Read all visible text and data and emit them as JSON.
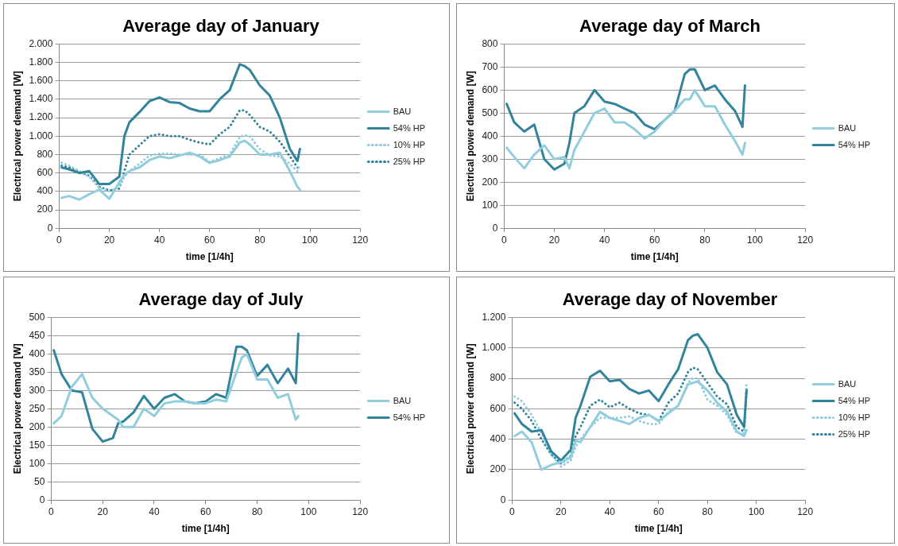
{
  "chart_data": [
    {
      "type": "line",
      "title": "Average day of January",
      "xlabel": "time [1/4h]",
      "ylabel": "Electrical power demand [W]",
      "legend": "right",
      "grid": "y",
      "marker": "none",
      "x": [
        1,
        4,
        8,
        12,
        16,
        20,
        24,
        26,
        28,
        32,
        36,
        40,
        44,
        48,
        52,
        56,
        60,
        64,
        68,
        72,
        74,
        76,
        80,
        84,
        88,
        92,
        95,
        96
      ],
      "xlim": [
        0,
        120
      ],
      "xticks": [
        0,
        20,
        40,
        60,
        80,
        100,
        120
      ],
      "ylim": [
        0,
        2000
      ],
      "yticks": [
        0,
        200,
        400,
        600,
        800,
        {
          "value": 1000,
          "label": "1.000"
        },
        {
          "value": 1200,
          "label": "1.200"
        },
        {
          "value": 1400,
          "label": "1.400"
        },
        {
          "value": 1600,
          "label": "1.600"
        },
        {
          "value": 1800,
          "label": "1.800"
        },
        {
          "value": 2000,
          "label": "2.000"
        }
      ],
      "series": [
        {
          "name": "BAU",
          "color": "#92cddd",
          "line_style": "solid",
          "values": [
            330,
            350,
            310,
            370,
            420,
            320,
            500,
            580,
            620,
            660,
            740,
            780,
            760,
            790,
            820,
            780,
            710,
            740,
            780,
            930,
            950,
            910,
            800,
            800,
            820,
            620,
            450,
            420
          ]
        },
        {
          "name": "54% HP",
          "color": "#31849b",
          "line_style": "solid",
          "values": [
            660,
            640,
            600,
            620,
            480,
            480,
            560,
            1000,
            1150,
            1260,
            1380,
            1420,
            1370,
            1360,
            1300,
            1270,
            1270,
            1400,
            1500,
            1780,
            1760,
            1720,
            1550,
            1440,
            1200,
            860,
            730,
            860
          ]
        },
        {
          "name": "10% HP",
          "color": "#92cddd",
          "line_style": "dotted",
          "values": [
            710,
            680,
            620,
            560,
            440,
            400,
            450,
            560,
            620,
            700,
            790,
            810,
            810,
            800,
            800,
            800,
            720,
            760,
            800,
            990,
            1010,
            1000,
            860,
            790,
            780,
            700,
            620,
            700
          ]
        },
        {
          "name": "25% HP",
          "color": "#31849b",
          "line_style": "dotted",
          "values": [
            680,
            660,
            610,
            570,
            450,
            410,
            430,
            620,
            800,
            900,
            1000,
            1020,
            1000,
            1000,
            960,
            930,
            910,
            1020,
            1100,
            1280,
            1280,
            1230,
            1100,
            1050,
            940,
            780,
            660,
            650
          ]
        }
      ]
    },
    {
      "type": "line",
      "title": "Average day of March",
      "xlabel": "time [1/4h]",
      "ylabel": "Electrical power demand [W]",
      "legend": "right",
      "grid": "y",
      "marker": "none",
      "x": [
        1,
        4,
        8,
        12,
        16,
        20,
        24,
        26,
        28,
        32,
        36,
        40,
        44,
        48,
        52,
        56,
        60,
        64,
        68,
        72,
        74,
        76,
        80,
        84,
        88,
        92,
        95,
        96
      ],
      "xlim": [
        0,
        120
      ],
      "xticks": [
        0,
        20,
        40,
        60,
        80,
        100,
        120
      ],
      "ylim": [
        0,
        800
      ],
      "yticks": [
        0,
        100,
        200,
        300,
        400,
        500,
        600,
        700,
        800
      ],
      "series": [
        {
          "name": "BAU",
          "color": "#92cddd",
          "line_style": "solid",
          "values": [
            350,
            310,
            260,
            320,
            360,
            300,
            310,
            260,
            340,
            420,
            500,
            520,
            460,
            460,
            430,
            390,
            420,
            470,
            510,
            560,
            560,
            600,
            530,
            530,
            450,
            380,
            320,
            370
          ]
        },
        {
          "name": "54% HP",
          "color": "#31849b",
          "line_style": "solid",
          "values": [
            540,
            460,
            420,
            450,
            300,
            255,
            280,
            370,
            500,
            530,
            600,
            550,
            540,
            520,
            500,
            450,
            430,
            470,
            510,
            670,
            690,
            690,
            600,
            620,
            560,
            510,
            440,
            620
          ]
        }
      ]
    },
    {
      "type": "line",
      "title": "Average day of July",
      "xlabel": "time [1/4h]",
      "ylabel": "Electrical power demand [W]",
      "legend": "right",
      "grid": "y",
      "marker": "none",
      "x": [
        1,
        4,
        8,
        12,
        16,
        20,
        24,
        26,
        28,
        32,
        36,
        40,
        44,
        48,
        52,
        56,
        60,
        64,
        68,
        72,
        74,
        76,
        80,
        84,
        88,
        92,
        95,
        96
      ],
      "xlim": [
        0,
        120
      ],
      "xticks": [
        0,
        20,
        40,
        60,
        80,
        100,
        120
      ],
      "ylim": [
        0,
        500
      ],
      "yticks": [
        0,
        50,
        100,
        150,
        200,
        250,
        300,
        350,
        400,
        450,
        500
      ],
      "series": [
        {
          "name": "BAU",
          "color": "#92cddd",
          "line_style": "solid",
          "values": [
            210,
            230,
            310,
            345,
            280,
            250,
            230,
            220,
            200,
            200,
            250,
            230,
            265,
            270,
            270,
            265,
            265,
            275,
            270,
            350,
            390,
            400,
            330,
            330,
            280,
            290,
            220,
            230
          ]
        },
        {
          "name": "54% HP",
          "color": "#31849b",
          "line_style": "solid",
          "values": [
            410,
            345,
            300,
            295,
            195,
            160,
            170,
            210,
            215,
            240,
            285,
            250,
            280,
            290,
            270,
            265,
            270,
            290,
            280,
            420,
            420,
            410,
            340,
            370,
            320,
            360,
            320,
            455
          ]
        }
      ]
    },
    {
      "type": "line",
      "title": "Average day of November",
      "xlabel": "time [1/4h]",
      "ylabel": "Electrical power demand [W]",
      "legend": "right",
      "grid": "y",
      "marker": "none",
      "x": [
        1,
        4,
        8,
        12,
        16,
        20,
        24,
        26,
        28,
        32,
        36,
        40,
        44,
        48,
        52,
        56,
        60,
        64,
        68,
        72,
        74,
        76,
        80,
        84,
        88,
        92,
        95,
        96
      ],
      "xlim": [
        0,
        120
      ],
      "xticks": [
        0,
        20,
        40,
        60,
        80,
        100,
        120
      ],
      "ylim": [
        0,
        1200
      ],
      "yticks": [
        0,
        200,
        400,
        600,
        800,
        {
          "value": 1000,
          "label": "1.000"
        },
        {
          "value": 1200,
          "label": "1.200"
        }
      ],
      "series": [
        {
          "name": "BAU",
          "color": "#92cddd",
          "line_style": "solid",
          "values": [
            420,
            450,
            380,
            200,
            230,
            250,
            280,
            390,
            380,
            480,
            580,
            540,
            520,
            500,
            540,
            560,
            520,
            570,
            620,
            760,
            770,
            780,
            720,
            640,
            580,
            450,
            420,
            460
          ]
        },
        {
          "name": "54% HP",
          "color": "#31849b",
          "line_style": "solid",
          "values": [
            570,
            500,
            450,
            460,
            320,
            260,
            330,
            540,
            620,
            810,
            850,
            780,
            790,
            730,
            700,
            720,
            650,
            760,
            860,
            1050,
            1080,
            1090,
            1000,
            840,
            760,
            560,
            480,
            720
          ]
        },
        {
          "name": "10% HP",
          "color": "#92cddd",
          "line_style": "dotted",
          "values": [
            680,
            650,
            560,
            440,
            300,
            220,
            260,
            350,
            400,
            480,
            540,
            540,
            540,
            550,
            520,
            500,
            500,
            580,
            620,
            770,
            800,
            800,
            660,
            620,
            560,
            440,
            440,
            770
          ]
        },
        {
          "name": "25% HP",
          "color": "#31849b",
          "line_style": "dotted",
          "values": [
            640,
            600,
            520,
            400,
            300,
            240,
            290,
            420,
            480,
            620,
            660,
            610,
            640,
            600,
            570,
            560,
            520,
            640,
            700,
            840,
            870,
            860,
            770,
            680,
            630,
            480,
            450,
            730
          ]
        }
      ]
    }
  ]
}
